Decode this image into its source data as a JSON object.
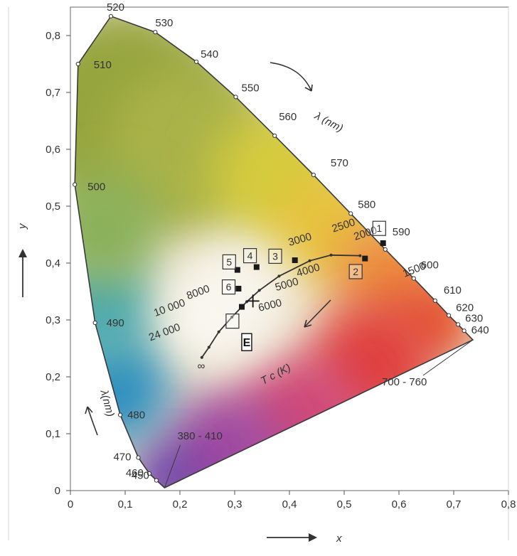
{
  "chart_data": {
    "type": "scatter",
    "title": "",
    "xlabel": "x",
    "ylabel": "y",
    "xlim": [
      0,
      0.8
    ],
    "ylim": [
      0,
      0.85
    ],
    "x_ticks": [
      "0",
      "0,1",
      "0,2",
      "0,3",
      "0,4",
      "0,5",
      "0,6",
      "0,7",
      "0,8"
    ],
    "y_ticks": [
      "0",
      "0,1",
      "0,2",
      "0,3",
      "0,4",
      "0,5",
      "0,6",
      "0,7",
      "0,8"
    ],
    "grid": false,
    "spectral_locus": [
      {
        "label": "380 - 410",
        "x": 0.172,
        "y": 0.005
      },
      {
        "label": "450",
        "x": 0.157,
        "y": 0.018
      },
      {
        "label": "460",
        "x": 0.144,
        "y": 0.03
      },
      {
        "label": "470",
        "x": 0.124,
        "y": 0.058
      },
      {
        "label": "480",
        "x": 0.091,
        "y": 0.133
      },
      {
        "label": "490",
        "x": 0.045,
        "y": 0.295
      },
      {
        "label": "500",
        "x": 0.008,
        "y": 0.538
      },
      {
        "label": "510",
        "x": 0.014,
        "y": 0.75
      },
      {
        "label": "520",
        "x": 0.074,
        "y": 0.834
      },
      {
        "label": "530",
        "x": 0.155,
        "y": 0.806
      },
      {
        "label": "540",
        "x": 0.23,
        "y": 0.754
      },
      {
        "label": "550",
        "x": 0.302,
        "y": 0.692
      },
      {
        "label": "560",
        "x": 0.373,
        "y": 0.624
      },
      {
        "label": "570",
        "x": 0.444,
        "y": 0.555
      },
      {
        "label": "580",
        "x": 0.512,
        "y": 0.487
      },
      {
        "label": "590",
        "x": 0.575,
        "y": 0.424
      },
      {
        "label": "600",
        "x": 0.627,
        "y": 0.373
      },
      {
        "label": "610",
        "x": 0.666,
        "y": 0.334
      },
      {
        "label": "620",
        "x": 0.691,
        "y": 0.308
      },
      {
        "label": "630",
        "x": 0.708,
        "y": 0.292
      },
      {
        "label": "640",
        "x": 0.719,
        "y": 0.281
      },
      {
        "label": "700 - 760",
        "x": 0.735,
        "y": 0.265
      }
    ],
    "planckian_locus": {
      "points": [
        {
          "x": 0.529,
          "y": 0.413
        },
        {
          "x": 0.476,
          "y": 0.414
        },
        {
          "x": 0.437,
          "y": 0.404
        },
        {
          "x": 0.381,
          "y": 0.377
        },
        {
          "x": 0.345,
          "y": 0.352
        },
        {
          "x": 0.322,
          "y": 0.332
        },
        {
          "x": 0.295,
          "y": 0.305
        },
        {
          "x": 0.271,
          "y": 0.279
        },
        {
          "x": 0.253,
          "y": 0.252
        },
        {
          "x": 0.24,
          "y": 0.234
        }
      ],
      "labels": [
        {
          "text": "1500",
          "x": 0.61,
          "y": 0.375,
          "rotate": 22
        },
        {
          "text": "2000",
          "x": 0.52,
          "y": 0.44,
          "rotate": 18
        },
        {
          "text": "2500",
          "x": 0.48,
          "y": 0.454,
          "rotate": 18
        },
        {
          "text": "3000",
          "x": 0.4,
          "y": 0.43,
          "rotate": 16
        },
        {
          "text": "4000",
          "x": 0.415,
          "y": 0.376,
          "rotate": 16
        },
        {
          "text": "5000",
          "x": 0.376,
          "y": 0.351,
          "rotate": 16
        },
        {
          "text": "6000",
          "x": 0.345,
          "y": 0.315,
          "rotate": 14
        },
        {
          "text": "8000",
          "x": 0.215,
          "y": 0.336,
          "rotate": 20
        },
        {
          "text": "10 000",
          "x": 0.155,
          "y": 0.306,
          "rotate": 20
        },
        {
          "text": "24 000",
          "x": 0.146,
          "y": 0.263,
          "rotate": 20
        },
        {
          "text": "∞",
          "x": 0.232,
          "y": 0.213,
          "rotate": 0
        }
      ]
    },
    "sources": [
      {
        "label": "1",
        "x": 0.571,
        "y": 0.435,
        "label_x": 0.564,
        "label_y": 0.461
      },
      {
        "label": "2",
        "x": 0.538,
        "y": 0.408,
        "label_x": 0.521,
        "label_y": 0.385
      },
      {
        "label": "3",
        "x": 0.41,
        "y": 0.405,
        "label_x": 0.374,
        "label_y": 0.412
      },
      {
        "label": "4",
        "x": 0.34,
        "y": 0.393,
        "label_x": 0.328,
        "label_y": 0.413
      },
      {
        "label": "5",
        "x": 0.305,
        "y": 0.388,
        "label_x": 0.29,
        "label_y": 0.402
      },
      {
        "label": "6",
        "x": 0.307,
        "y": 0.355,
        "label_x": 0.289,
        "label_y": 0.358
      },
      {
        "label": "",
        "x": 0.313,
        "y": 0.323,
        "label_x": 0.296,
        "label_y": 0.298
      }
    ],
    "white_point": {
      "label": "E",
      "x": 0.3333,
      "y": 0.3333,
      "label_x": 0.322,
      "label_y": 0.261
    },
    "annotations": [
      {
        "text": "λ (nm)",
        "x": 0.445,
        "y": 0.655,
        "rotate": 28
      },
      {
        "text": "λ(nm)",
        "x": 0.055,
        "y": 0.175,
        "rotate": 75
      },
      {
        "text": "T c (K)",
        "x": 0.352,
        "y": 0.186,
        "rotate": -28
      }
    ]
  }
}
